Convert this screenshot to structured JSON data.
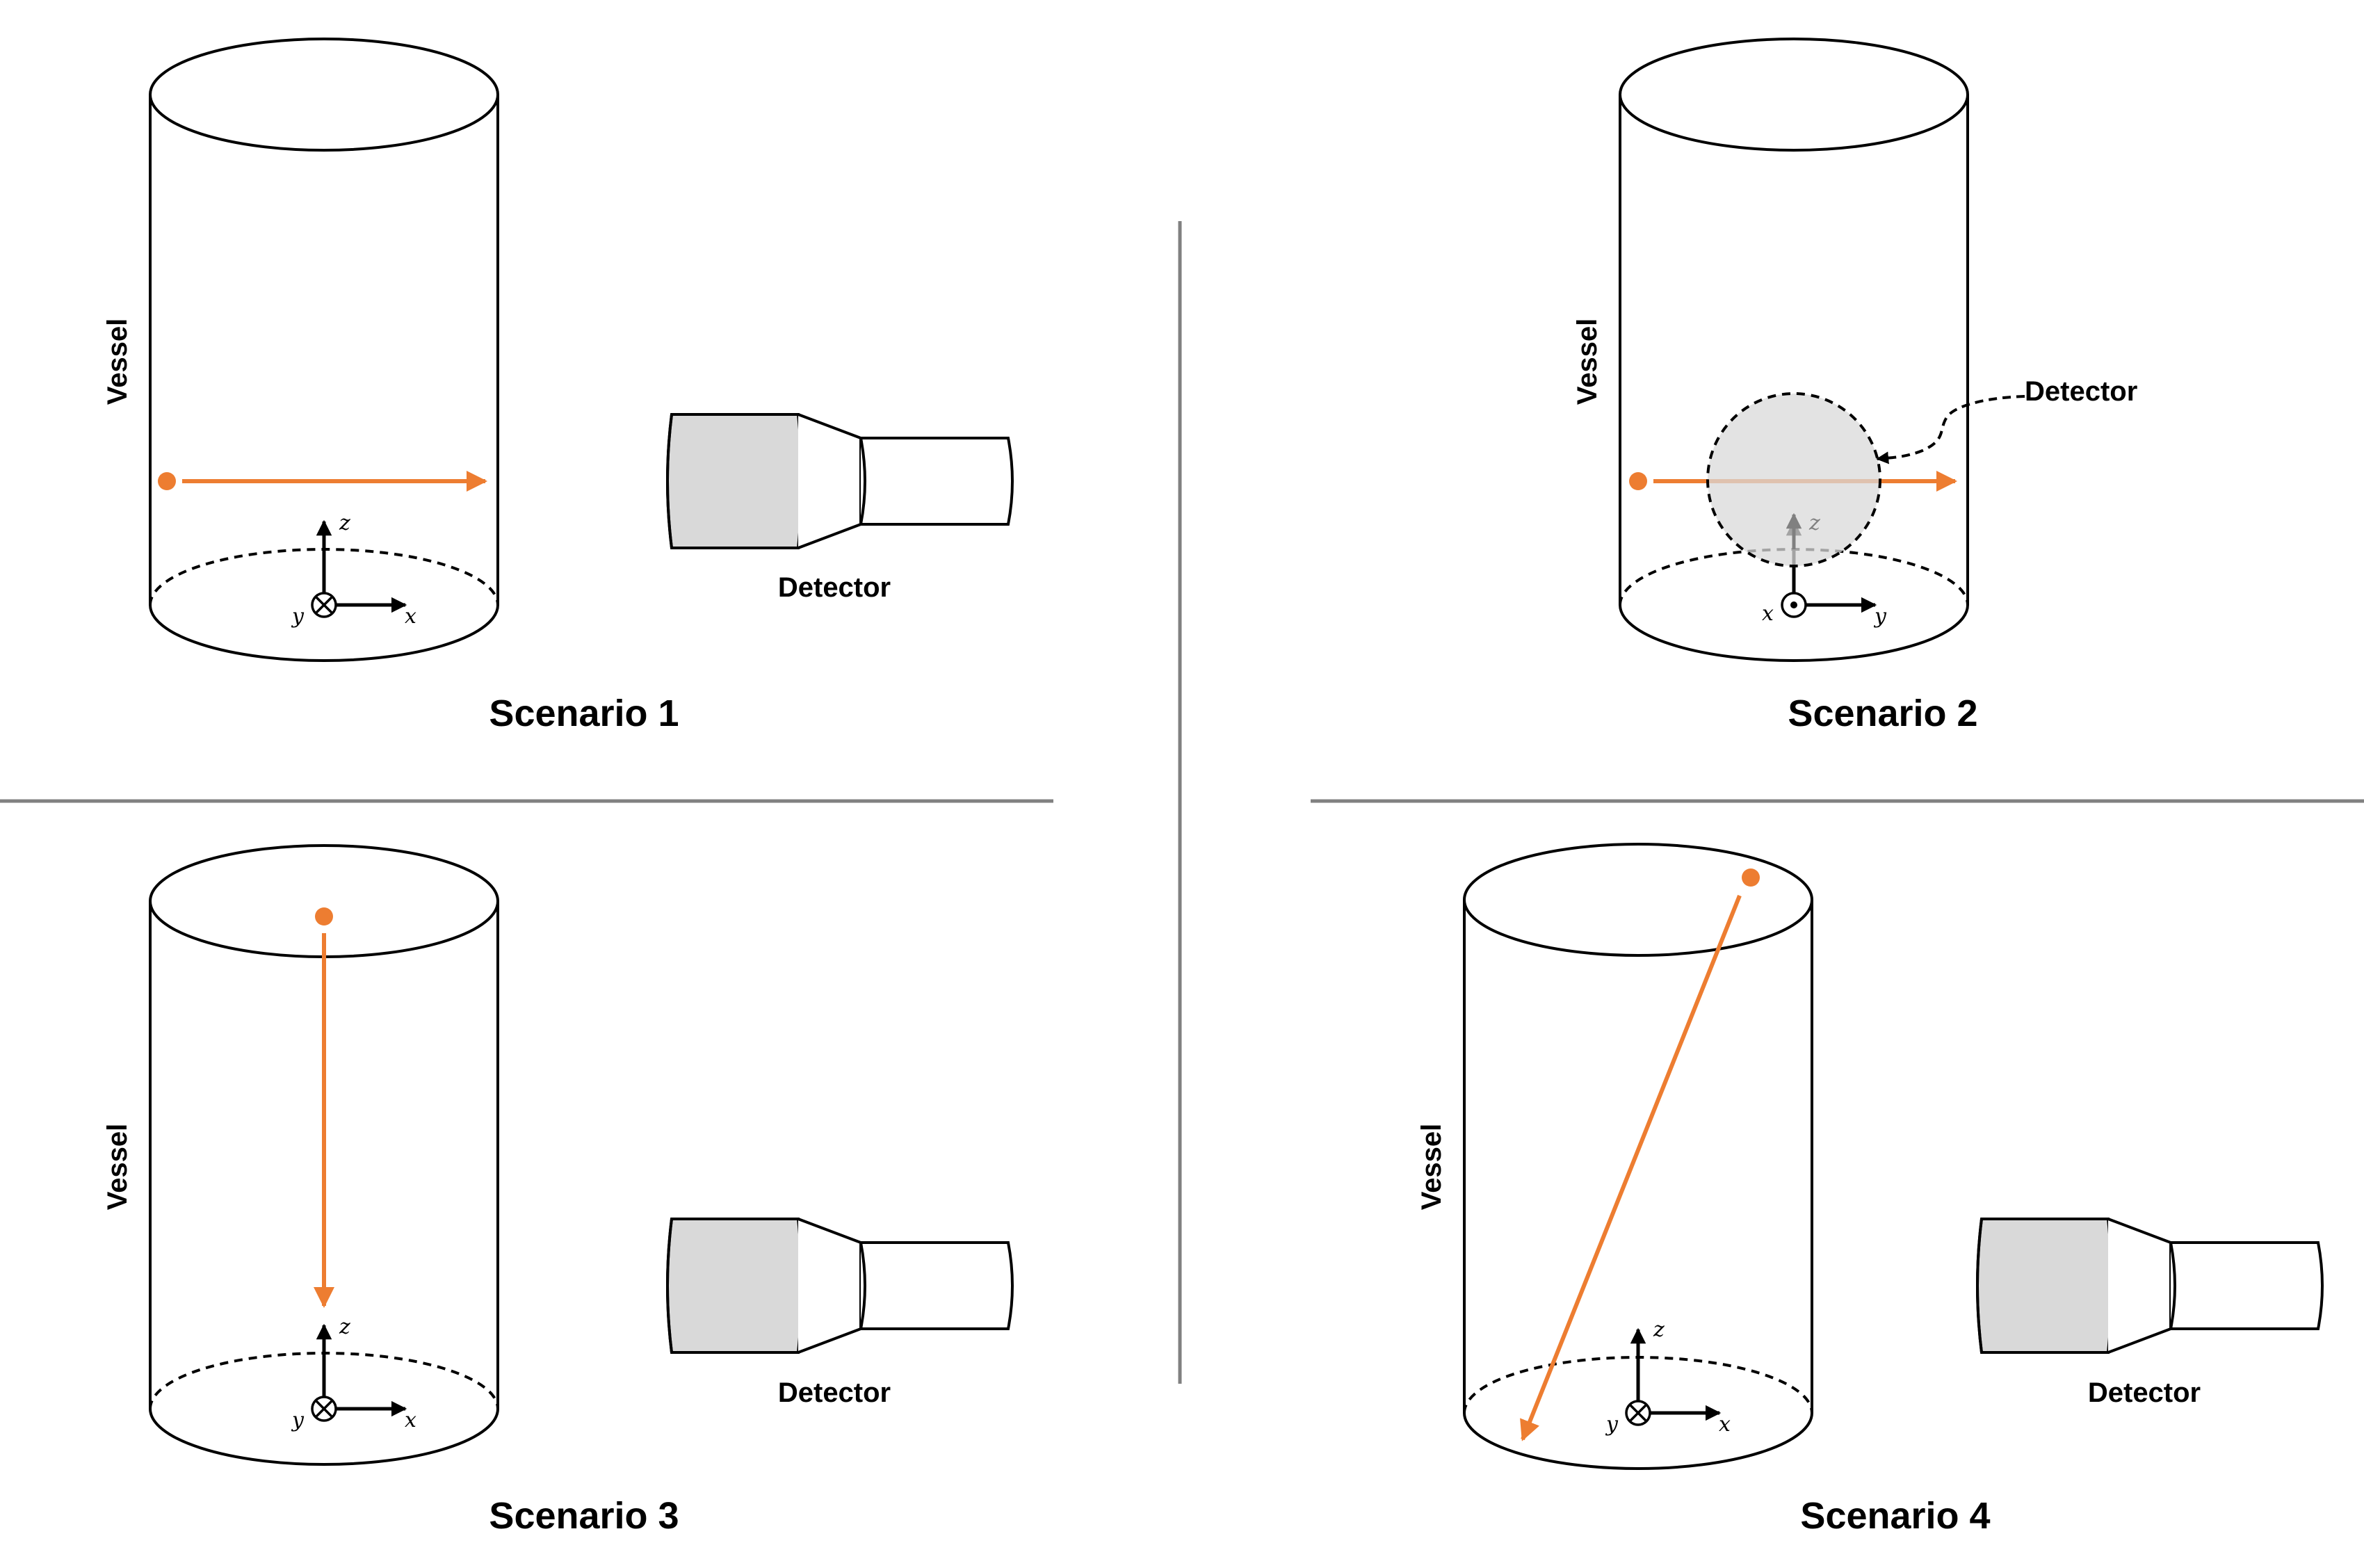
{
  "colors": {
    "trajectory": "#ED7D31",
    "outline": "#000000",
    "detector_fill": "#D9D9D9",
    "divider": "#808080"
  },
  "scenarios": [
    {
      "title": "Scenario 1",
      "vessel_label": "Vessel",
      "detector_label": "Detector",
      "axes": {
        "vertical": "z",
        "horizontal": "x",
        "out_of_plane": "y",
        "out_of_plane_symbol": "into-page"
      }
    },
    {
      "title": "Scenario 2",
      "vessel_label": "Vessel",
      "detector_label": "Detector",
      "axes": {
        "vertical": "z",
        "horizontal": "y",
        "out_of_plane": "x",
        "out_of_plane_symbol": "out-of-page"
      }
    },
    {
      "title": "Scenario 3",
      "vessel_label": "Vessel",
      "detector_label": "Detector",
      "axes": {
        "vertical": "z",
        "horizontal": "x",
        "out_of_plane": "y",
        "out_of_plane_symbol": "into-page"
      }
    },
    {
      "title": "Scenario 4",
      "vessel_label": "Vessel",
      "detector_label": "Detector",
      "axes": {
        "vertical": "z",
        "horizontal": "x",
        "out_of_plane": "y",
        "out_of_plane_symbol": "into-page"
      }
    }
  ]
}
